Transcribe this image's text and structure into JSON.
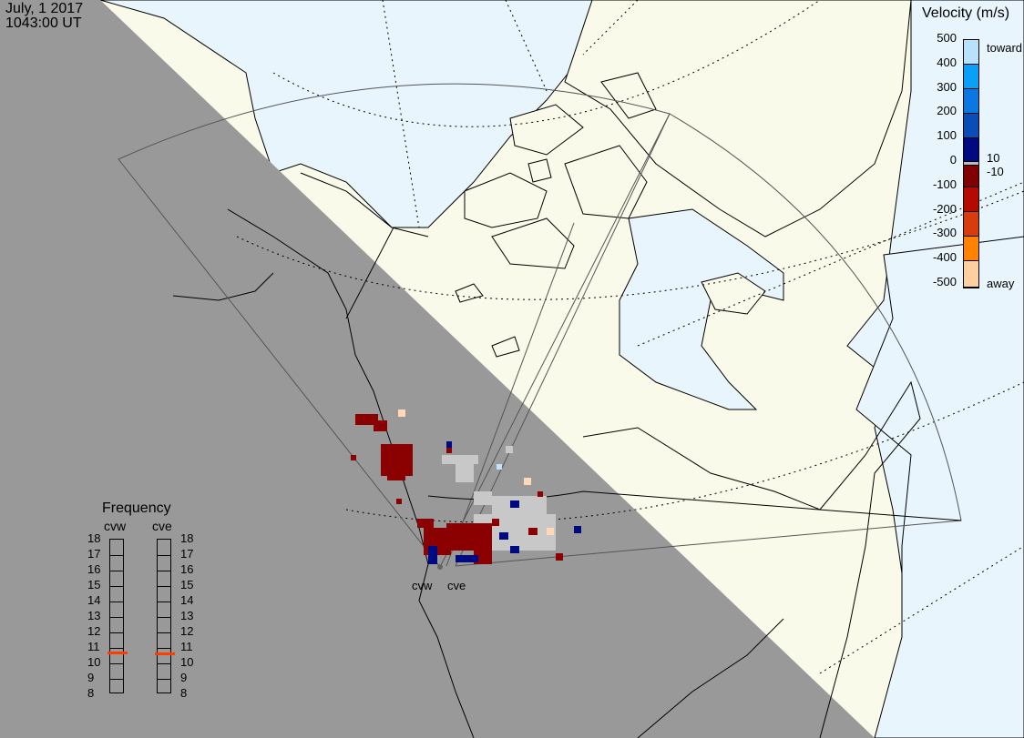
{
  "header": {
    "date": "July, 1 2017",
    "time": "1043:00 UT"
  },
  "colorbar": {
    "title": "Velocity (m/s)",
    "ticks": [
      "500",
      "400",
      "300",
      "200",
      "100",
      "0",
      "-100",
      "-200",
      "-300",
      "-400",
      "-500"
    ],
    "toward_label": "toward",
    "away_label": "away",
    "plus_label": "10",
    "minus_label": "-10",
    "colors": [
      "#b8e2fb",
      "#0aa0f8",
      "#0a78e0",
      "#0a4cb8",
      "#000a80",
      "#bbbbbb",
      "#800000",
      "#b40a00",
      "#d83c0a",
      "#ff8200",
      "#ffcfa0"
    ]
  },
  "frequency": {
    "title": "Frequency",
    "radars": [
      {
        "name": "cvw",
        "value_mhz": 10.7
      },
      {
        "name": "cve",
        "value_mhz": 10.6
      }
    ],
    "ticks": [
      "18",
      "17",
      "16",
      "15",
      "14",
      "13",
      "12",
      "11",
      "10",
      "9",
      "8"
    ],
    "marker_color": "#ff3c00"
  },
  "radars": {
    "cvw": "cvw",
    "cve": "cve"
  },
  "colors": {
    "ocean": "#e8f5fd",
    "land": "#fafaea",
    "night": "#999999",
    "ground_scatter": "#c8c8c8"
  }
}
